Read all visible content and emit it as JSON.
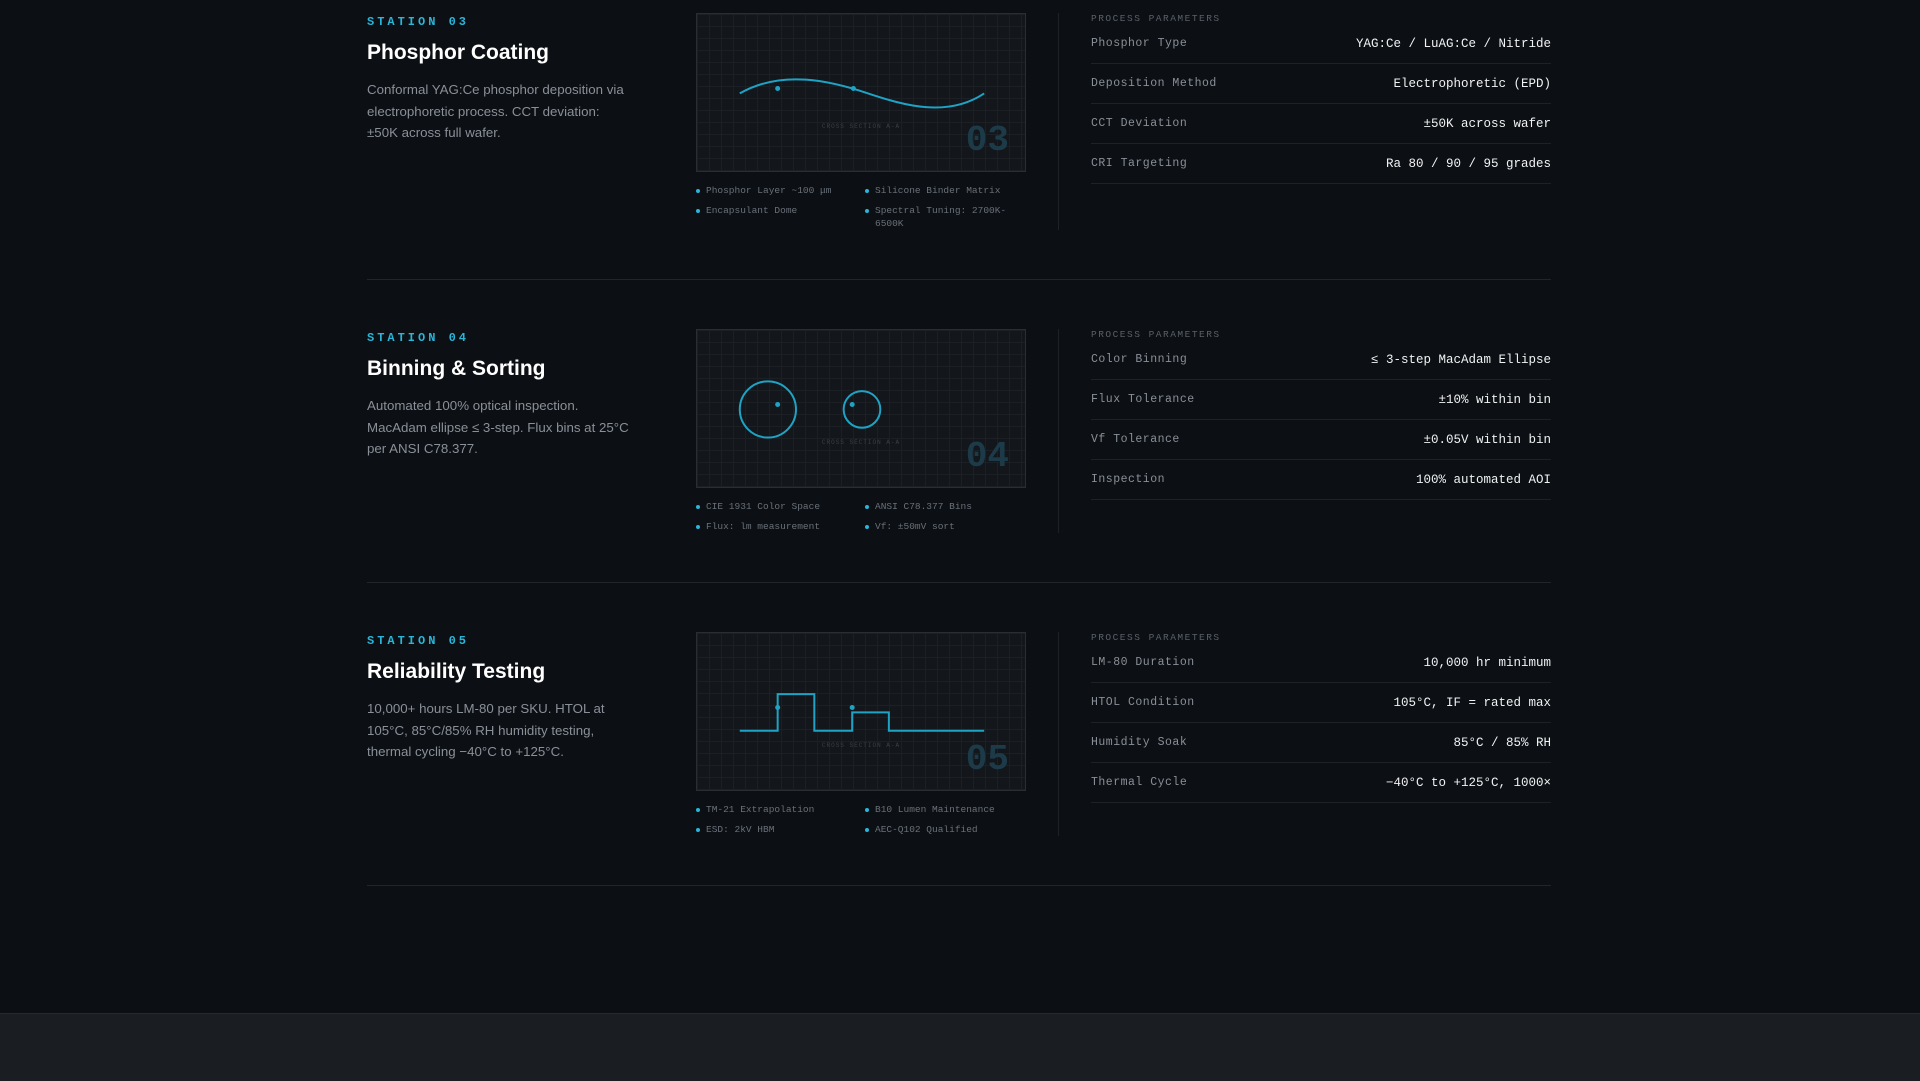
{
  "sections": [
    {
      "station": "STATION 03",
      "title": "Phosphor Coating",
      "description": "Conformal YAG:Ce phosphor deposition via electrophoretic process. CCT deviation: ±50K across full wafer.",
      "caption": "CROSS SECTION A-A",
      "number": "03",
      "bullets": [
        "Phosphor Layer ~100 μm",
        "Silicone Binder Matrix",
        "Encapsulant Dome",
        "Spectral Tuning: 2700K-6500K"
      ],
      "params_header": "PROCESS PARAMETERS",
      "params": [
        {
          "label": "Phosphor Type",
          "value": "YAG:Ce / LuAG:Ce / Nitride"
        },
        {
          "label": "Deposition Method",
          "value": "Electrophoretic (EPD)"
        },
        {
          "label": "CCT Deviation",
          "value": "±50K across wafer"
        },
        {
          "label": "CRI Targeting",
          "value": "Ra 80 / 90 / 95 grades"
        }
      ]
    },
    {
      "station": "STATION 04",
      "title": "Binning & Sorting",
      "description": "Automated 100% optical inspection. MacAdam ellipse ≤ 3-step. Flux bins at 25°C per ANSI C78.377.",
      "caption": "CROSS SECTION A-A",
      "number": "04",
      "bullets": [
        "CIE 1931 Color Space",
        "ANSI C78.377 Bins",
        "Flux: lm measurement",
        "Vf: ±50mV sort"
      ],
      "params_header": "PROCESS PARAMETERS",
      "params": [
        {
          "label": "Color Binning",
          "value": "≤ 3-step MacAdam Ellipse"
        },
        {
          "label": "Flux Tolerance",
          "value": "±10% within bin"
        },
        {
          "label": "Vf Tolerance",
          "value": "±0.05V within bin"
        },
        {
          "label": "Inspection",
          "value": "100% automated AOI"
        }
      ]
    },
    {
      "station": "STATION 05",
      "title": "Reliability Testing",
      "description": "10,000+ hours LM-80 per SKU. HTOL at 105°C, 85°C/85% RH humidity testing, thermal cycling −40°C to +125°C.",
      "caption": "CROSS SECTION A-A",
      "number": "05",
      "bullets": [
        "TM-21 Extrapolation",
        "B10 Lumen Maintenance",
        "ESD: 2kV HBM",
        "AEC-Q102 Qualified"
      ],
      "params_header": "PROCESS PARAMETERS",
      "params": [
        {
          "label": "LM-80 Duration",
          "value": "10,000 hr minimum"
        },
        {
          "label": "HTOL Condition",
          "value": "105°C, IF = rated max"
        },
        {
          "label": "Humidity Soak",
          "value": "85°C / 85% RH"
        },
        {
          "label": "Thermal Cycle",
          "value": "−40°C to +125°C, 1000×"
        }
      ]
    }
  ]
}
